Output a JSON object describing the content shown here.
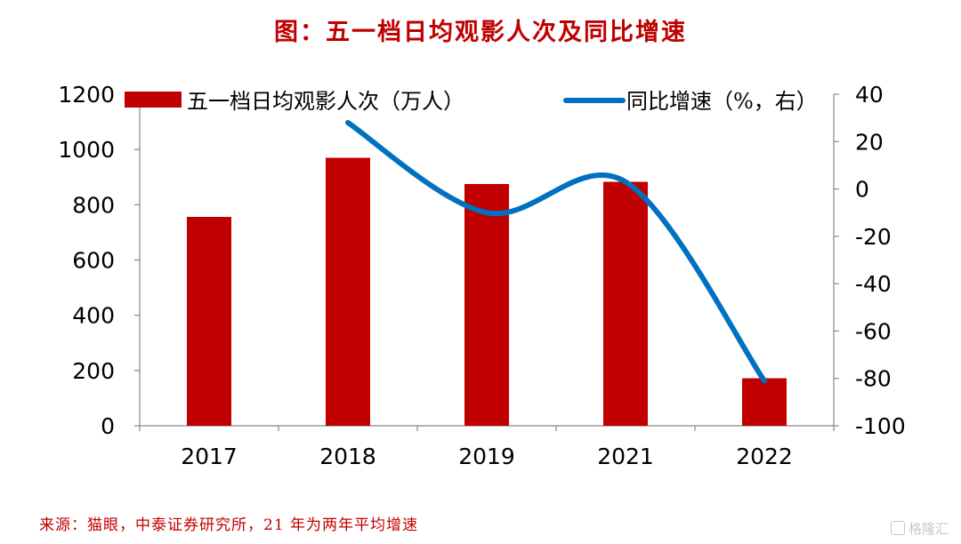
{
  "title": "图：五一档日均观影人次及同比增速",
  "source": "来源：猫眼，中泰证券研究所，21 年为两年平均增速",
  "watermark": "格隆汇",
  "colors": {
    "bar": "#c00000",
    "line": "#0070c0",
    "title": "#c00000",
    "axis": "#888888"
  },
  "chart_data": {
    "type": "bar+line",
    "categories": [
      "2017",
      "2018",
      "2019",
      "2021",
      "2022"
    ],
    "series": [
      {
        "name": "五一档日均观影人次（万人）",
        "type": "bar",
        "axis": "left",
        "values": [
          756,
          970,
          875,
          883,
          172
        ]
      },
      {
        "name": "同比增速（%，右）",
        "type": "line",
        "axis": "right",
        "smooth": true,
        "values": [
          null,
          28,
          -10,
          3,
          -81
        ]
      }
    ],
    "y_left": {
      "min": 0,
      "max": 1200,
      "ticks": [
        0,
        200,
        400,
        600,
        800,
        1000,
        1200
      ]
    },
    "y_right": {
      "min": -100,
      "max": 40,
      "ticks": [
        -100,
        -80,
        -60,
        -40,
        -20,
        0,
        20,
        40
      ]
    },
    "legend": "top",
    "grid": false
  }
}
